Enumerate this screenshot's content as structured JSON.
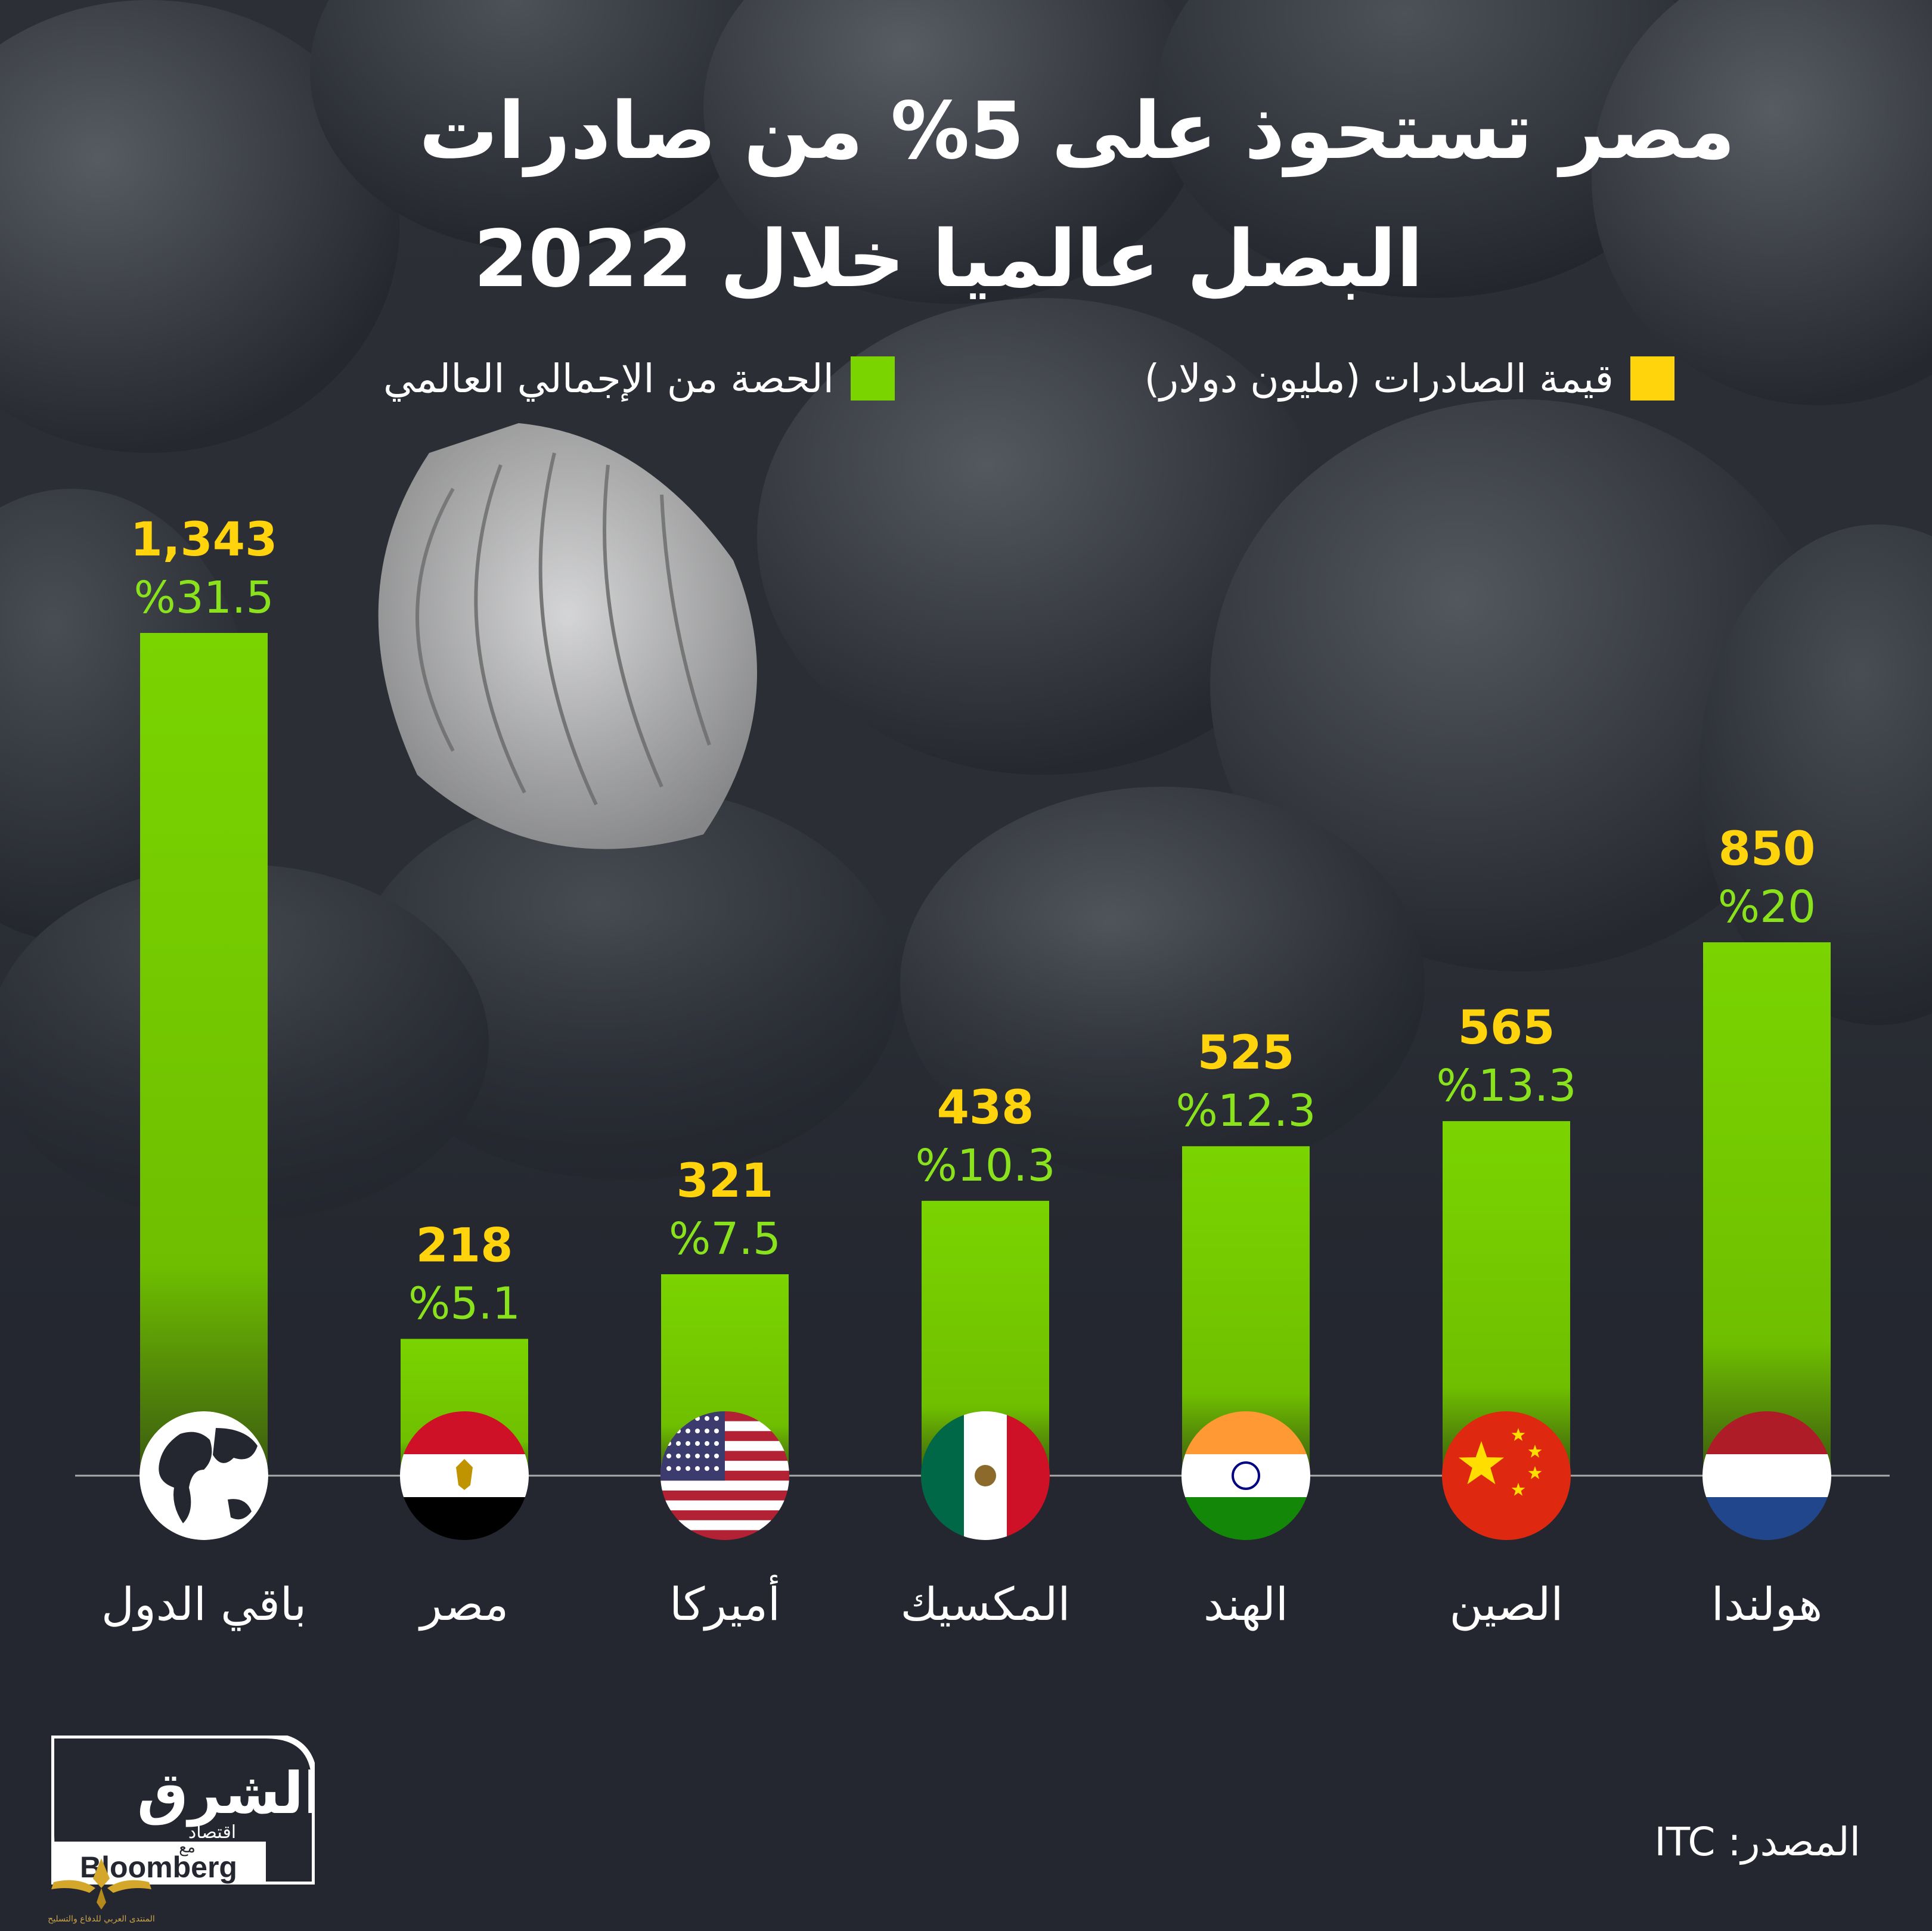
{
  "title": {
    "line1": "مصر تستحوذ على 5% من صادرات",
    "line2": "البصل عالميا خلال 2022"
  },
  "legend": {
    "value_label": "قيمة الصادرات (مليون دولار)",
    "share_label": "الحصة من الإجمالي العالمي"
  },
  "colors": {
    "background": "#24272f",
    "bar": "#7ad400",
    "value_text": "#ffd40d",
    "share_text": "#8ae21d",
    "text": "#ffffff"
  },
  "chart_data": {
    "type": "bar",
    "categories": [
      "باقي الدول",
      "مصر",
      "أميركا",
      "المكسيك",
      "الهند",
      "الصين",
      "هولندا"
    ],
    "series": [
      {
        "name": "قيمة الصادرات (مليون دولار)",
        "values": [
          1343,
          218,
          321,
          438,
          525,
          565,
          850
        ]
      },
      {
        "name": "الحصة من الإجمالي العالمي",
        "values": [
          31.5,
          5.1,
          7.5,
          10.3,
          12.3,
          13.3,
          20
        ]
      }
    ],
    "value_labels": [
      "1,343",
      "218",
      "321",
      "438",
      "525",
      "565",
      "850"
    ],
    "share_labels": [
      "%31.5",
      "%5.1",
      "%7.5",
      "%10.3",
      "%12.3",
      "%13.3",
      "%20"
    ],
    "icons": [
      "globe-icon",
      "egypt-flag-icon",
      "usa-flag-icon",
      "mexico-flag-icon",
      "india-flag-icon",
      "china-flag-icon",
      "netherlands-flag-icon"
    ],
    "legend_position": "top",
    "grid": false
  },
  "logo": {
    "arabic_main": "الشرق",
    "arabic_sub": "اقتصاد",
    "with": "مع",
    "partner": "Bloomberg"
  },
  "source": {
    "label": "المصدر:",
    "value": "ITC"
  },
  "watermark": {
    "text": "المنتدى العربي للدفاع والتسليح"
  }
}
